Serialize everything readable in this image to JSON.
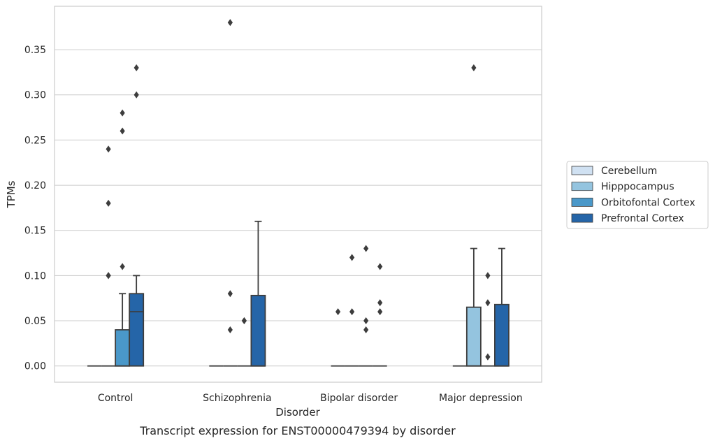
{
  "chart_data": {
    "type": "box",
    "caption": "Transcript expression for ENST00000479394 by disorder",
    "xlabel": "Disorder",
    "ylabel": "TPMs",
    "ylim": [
      -0.018,
      0.398
    ],
    "yticks": [
      "0.00",
      "0.05",
      "0.10",
      "0.15",
      "0.20",
      "0.25",
      "0.30",
      "0.35"
    ],
    "ytick_values": [
      0,
      0.05,
      0.1,
      0.15,
      0.2,
      0.25,
      0.3,
      0.35
    ],
    "categories": [
      "Control",
      "Schizophrenia",
      "Bipolar disorder",
      "Major depression"
    ],
    "grid": "horizontal",
    "legend_position": "right",
    "series": [
      {
        "name": "Cerebellum",
        "color": "#d0e1f2",
        "boxes": [
          {
            "category": "Control",
            "q1": 0,
            "median": 0,
            "q3": 0,
            "whisker_low": 0,
            "whisker_high": 0,
            "outliers": []
          },
          {
            "category": "Schizophrenia",
            "q1": 0,
            "median": 0,
            "q3": 0,
            "whisker_low": 0,
            "whisker_high": 0,
            "outliers": []
          },
          {
            "category": "Bipolar disorder",
            "q1": 0,
            "median": 0,
            "q3": 0,
            "whisker_low": 0,
            "whisker_high": 0,
            "outliers": [
              0.06
            ]
          },
          {
            "category": "Major depression",
            "q1": 0,
            "median": 0,
            "q3": 0,
            "whisker_low": 0,
            "whisker_high": 0,
            "outliers": []
          }
        ]
      },
      {
        "name": "Hipppocampus",
        "color": "#94c4df",
        "boxes": [
          {
            "category": "Control",
            "q1": 0,
            "median": 0,
            "q3": 0,
            "whisker_low": 0,
            "whisker_high": 0,
            "outliers": [
              0.1,
              0.1,
              0.18,
              0.24
            ]
          },
          {
            "category": "Schizophrenia",
            "q1": 0,
            "median": 0,
            "q3": 0,
            "whisker_low": 0,
            "whisker_high": 0,
            "outliers": [
              0.04,
              0.08,
              0.38
            ]
          },
          {
            "category": "Bipolar disorder",
            "q1": 0,
            "median": 0,
            "q3": 0,
            "whisker_low": 0,
            "whisker_high": 0,
            "outliers": [
              0.06,
              0.12
            ]
          },
          {
            "category": "Major depression",
            "q1": 0,
            "median": 0,
            "q3": 0.065,
            "whisker_low": 0,
            "whisker_high": 0.13,
            "outliers": [
              0.33
            ]
          }
        ]
      },
      {
        "name": "Orbitofontal Cortex",
        "color": "#4a98c9",
        "boxes": [
          {
            "category": "Control",
            "q1": 0,
            "median": 0,
            "q3": 0.04,
            "whisker_low": 0,
            "whisker_high": 0.08,
            "outliers": [
              0.11,
              0.26,
              0.28
            ]
          },
          {
            "category": "Schizophrenia",
            "q1": 0,
            "median": 0,
            "q3": 0,
            "whisker_low": 0,
            "whisker_high": 0,
            "outliers": [
              0.05,
              0.05
            ]
          },
          {
            "category": "Bipolar disorder",
            "q1": 0,
            "median": 0,
            "q3": 0,
            "whisker_low": 0,
            "whisker_high": 0,
            "outliers": [
              0.04,
              0.05,
              0.13
            ]
          },
          {
            "category": "Major depression",
            "q1": 0,
            "median": 0,
            "q3": 0,
            "whisker_low": 0,
            "whisker_high": 0,
            "outliers": [
              0.01,
              0.07,
              0.1
            ]
          }
        ]
      },
      {
        "name": "Prefrontal Cortex",
        "color": "#2565a8",
        "boxes": [
          {
            "category": "Control",
            "q1": 0,
            "median": 0.06,
            "q3": 0.08,
            "whisker_low": 0,
            "whisker_high": 0.1,
            "outliers": [
              0.3,
              0.33
            ]
          },
          {
            "category": "Schizophrenia",
            "q1": 0,
            "median": 0,
            "q3": 0.078,
            "whisker_low": 0,
            "whisker_high": 0.16,
            "outliers": []
          },
          {
            "category": "Bipolar disorder",
            "q1": 0,
            "median": 0,
            "q3": 0,
            "whisker_low": 0,
            "whisker_high": 0,
            "outliers": [
              0.06,
              0.07,
              0.11
            ]
          },
          {
            "category": "Major depression",
            "q1": 0,
            "median": 0,
            "q3": 0.068,
            "whisker_low": 0,
            "whisker_high": 0.13,
            "outliers": []
          }
        ]
      }
    ]
  }
}
